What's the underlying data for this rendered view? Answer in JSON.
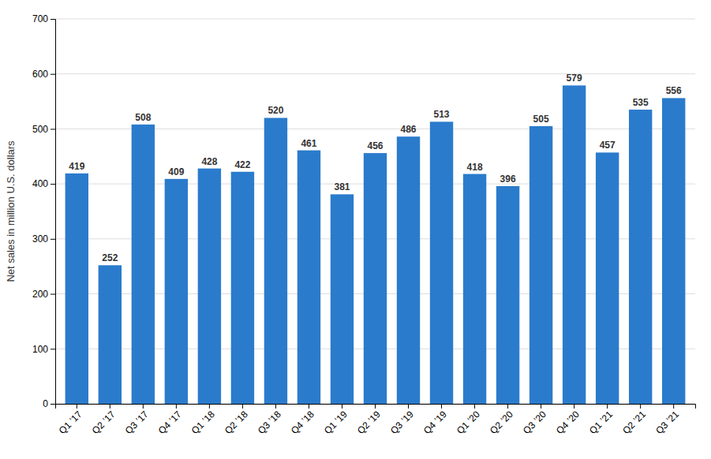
{
  "chart_data": {
    "type": "bar",
    "ylabel": "Net sales in million U.S. dollars",
    "categories": [
      "Q1 ’17",
      "Q2 ’17",
      "Q3 ’17",
      "Q4 ’17",
      "Q1 ’18",
      "Q2 ’18",
      "Q3 ’18",
      "Q4 ’18",
      "Q1 ’19",
      "Q2 ’19",
      "Q3 ’19",
      "Q4 ’19",
      "Q1 ’20",
      "Q2 ’20",
      "Q3 ’20",
      "Q4 ’20",
      "Q1 ’21",
      "Q2 ’21",
      "Q3 ’21"
    ],
    "values": [
      419,
      252,
      508,
      409,
      428,
      422,
      520,
      461,
      381,
      456,
      486,
      513,
      418,
      396,
      505,
      579,
      457,
      535,
      556
    ],
    "color": "#2b7bcc",
    "ylim": [
      0,
      700
    ],
    "yticks": [
      0,
      100,
      200,
      300,
      400,
      500,
      600,
      700
    ],
    "grid": true,
    "data_labels": true
  }
}
